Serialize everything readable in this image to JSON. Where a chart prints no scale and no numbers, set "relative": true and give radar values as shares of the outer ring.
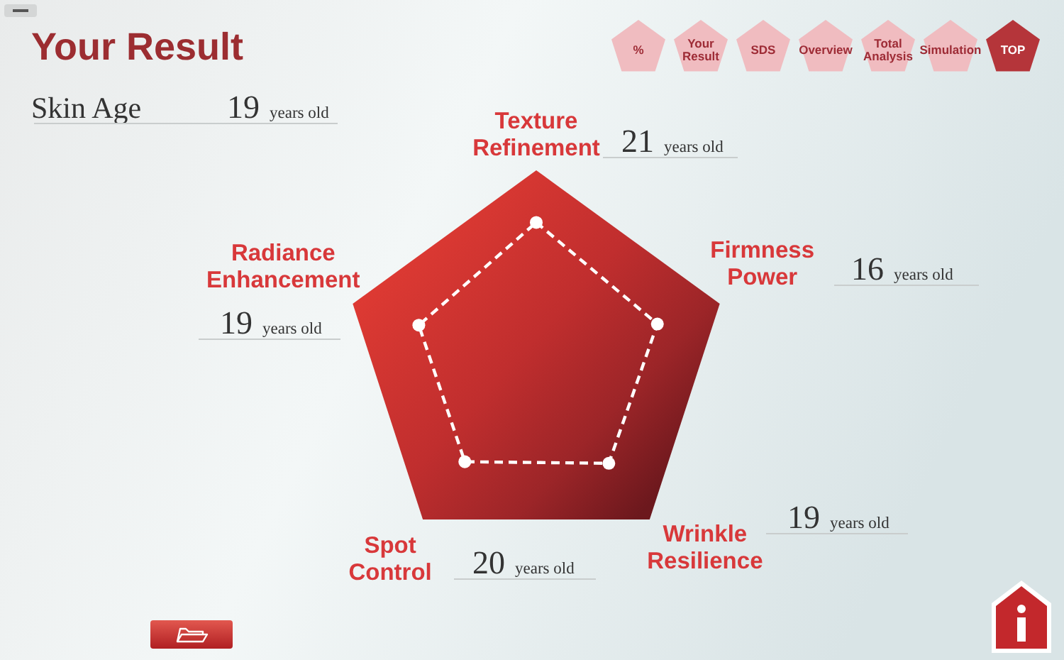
{
  "chart_data": {
    "type": "radar",
    "title": "Your Result",
    "subtitle": "Skin Age",
    "categories": [
      "Texture Refinement",
      "Firmness Power",
      "Wrinkle Resilience",
      "Spot Control",
      "Radiance Enhancement"
    ],
    "series": [
      {
        "color": "#ffffff",
        "values": [
          0.73,
          0.66,
          0.64,
          0.63,
          0.64
        ]
      }
    ],
    "relative": true,
    "marker": "circle",
    "line_style": "dashed",
    "annotations": [
      "19 years old",
      "21 years old",
      "16 years old",
      "19 years old",
      "20 years old",
      "19 years old",
      "%",
      "Your Result",
      "SDS",
      "Overview",
      "Total Analysis",
      "Simulation",
      "TOP"
    ]
  }
}
